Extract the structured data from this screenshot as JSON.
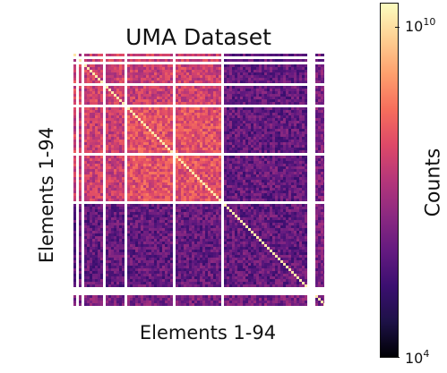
{
  "chart_data": {
    "type": "heatmap",
    "title": "UMA Dataset",
    "xlabel": "Elements 1-94",
    "ylabel": "Elements 1-94",
    "colorbar": {
      "label": "Counts",
      "scale": "log",
      "range": [
        10000,
        10000000000
      ],
      "ticks": [
        {
          "base": "10",
          "exp": "10",
          "value": 10000000000
        },
        {
          "base": "10",
          "exp": "4",
          "value": 10000
        }
      ],
      "colormap": "magma"
    },
    "n_elements": 94,
    "block_edges": [
      1,
      3,
      11,
      19,
      37,
      55,
      87,
      94
    ],
    "gap_rows": [
      87,
      88,
      89
    ],
    "relative_log_levels": {
      "diagonal": 0.95,
      "light_block": 0.62,
      "upper_rows": 0.55,
      "heavy_block": 0.3,
      "actinide_strip": 0.35,
      "white_missing_pixels": "none"
    }
  }
}
